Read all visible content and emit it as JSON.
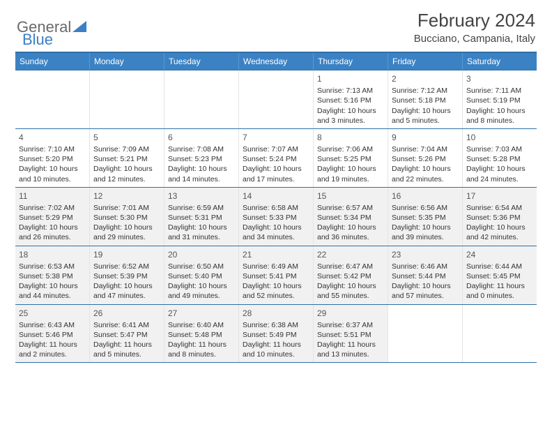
{
  "logo": {
    "text1": "General",
    "text2": "Blue"
  },
  "title": "February 2024",
  "location": "Bucciano, Campania, Italy",
  "colors": {
    "headerBar": "#3b82c4",
    "ruleLine": "#2f6fa7",
    "shaded": "#f1f1f1",
    "logoGray": "#6a6a6a",
    "logoBlue": "#3b7fc4"
  },
  "weekdays": [
    "Sunday",
    "Monday",
    "Tuesday",
    "Wednesday",
    "Thursday",
    "Friday",
    "Saturday"
  ],
  "weeks": [
    [
      {
        "empty": true
      },
      {
        "empty": true
      },
      {
        "empty": true
      },
      {
        "empty": true
      },
      {
        "num": "1",
        "sunrise": "7:13 AM",
        "sunset": "5:16 PM",
        "daylight": "10 hours and 3 minutes."
      },
      {
        "num": "2",
        "sunrise": "7:12 AM",
        "sunset": "5:18 PM",
        "daylight": "10 hours and 5 minutes."
      },
      {
        "num": "3",
        "sunrise": "7:11 AM",
        "sunset": "5:19 PM",
        "daylight": "10 hours and 8 minutes."
      }
    ],
    [
      {
        "num": "4",
        "sunrise": "7:10 AM",
        "sunset": "5:20 PM",
        "daylight": "10 hours and 10 minutes."
      },
      {
        "num": "5",
        "sunrise": "7:09 AM",
        "sunset": "5:21 PM",
        "daylight": "10 hours and 12 minutes."
      },
      {
        "num": "6",
        "sunrise": "7:08 AM",
        "sunset": "5:23 PM",
        "daylight": "10 hours and 14 minutes."
      },
      {
        "num": "7",
        "sunrise": "7:07 AM",
        "sunset": "5:24 PM",
        "daylight": "10 hours and 17 minutes."
      },
      {
        "num": "8",
        "sunrise": "7:06 AM",
        "sunset": "5:25 PM",
        "daylight": "10 hours and 19 minutes."
      },
      {
        "num": "9",
        "sunrise": "7:04 AM",
        "sunset": "5:26 PM",
        "daylight": "10 hours and 22 minutes."
      },
      {
        "num": "10",
        "sunrise": "7:03 AM",
        "sunset": "5:28 PM",
        "daylight": "10 hours and 24 minutes."
      }
    ],
    [
      {
        "num": "11",
        "shaded": true,
        "sunrise": "7:02 AM",
        "sunset": "5:29 PM",
        "daylight": "10 hours and 26 minutes."
      },
      {
        "num": "12",
        "shaded": true,
        "sunrise": "7:01 AM",
        "sunset": "5:30 PM",
        "daylight": "10 hours and 29 minutes."
      },
      {
        "num": "13",
        "shaded": true,
        "sunrise": "6:59 AM",
        "sunset": "5:31 PM",
        "daylight": "10 hours and 31 minutes."
      },
      {
        "num": "14",
        "shaded": true,
        "sunrise": "6:58 AM",
        "sunset": "5:33 PM",
        "daylight": "10 hours and 34 minutes."
      },
      {
        "num": "15",
        "shaded": true,
        "sunrise": "6:57 AM",
        "sunset": "5:34 PM",
        "daylight": "10 hours and 36 minutes."
      },
      {
        "num": "16",
        "shaded": true,
        "sunrise": "6:56 AM",
        "sunset": "5:35 PM",
        "daylight": "10 hours and 39 minutes."
      },
      {
        "num": "17",
        "shaded": true,
        "sunrise": "6:54 AM",
        "sunset": "5:36 PM",
        "daylight": "10 hours and 42 minutes."
      }
    ],
    [
      {
        "num": "18",
        "shaded": true,
        "sunrise": "6:53 AM",
        "sunset": "5:38 PM",
        "daylight": "10 hours and 44 minutes."
      },
      {
        "num": "19",
        "shaded": true,
        "sunrise": "6:52 AM",
        "sunset": "5:39 PM",
        "daylight": "10 hours and 47 minutes."
      },
      {
        "num": "20",
        "shaded": true,
        "sunrise": "6:50 AM",
        "sunset": "5:40 PM",
        "daylight": "10 hours and 49 minutes."
      },
      {
        "num": "21",
        "shaded": true,
        "sunrise": "6:49 AM",
        "sunset": "5:41 PM",
        "daylight": "10 hours and 52 minutes."
      },
      {
        "num": "22",
        "shaded": true,
        "sunrise": "6:47 AM",
        "sunset": "5:42 PM",
        "daylight": "10 hours and 55 minutes."
      },
      {
        "num": "23",
        "shaded": true,
        "sunrise": "6:46 AM",
        "sunset": "5:44 PM",
        "daylight": "10 hours and 57 minutes."
      },
      {
        "num": "24",
        "shaded": true,
        "sunrise": "6:44 AM",
        "sunset": "5:45 PM",
        "daylight": "11 hours and 0 minutes."
      }
    ],
    [
      {
        "num": "25",
        "shaded": true,
        "sunrise": "6:43 AM",
        "sunset": "5:46 PM",
        "daylight": "11 hours and 2 minutes."
      },
      {
        "num": "26",
        "shaded": true,
        "sunrise": "6:41 AM",
        "sunset": "5:47 PM",
        "daylight": "11 hours and 5 minutes."
      },
      {
        "num": "27",
        "shaded": true,
        "sunrise": "6:40 AM",
        "sunset": "5:48 PM",
        "daylight": "11 hours and 8 minutes."
      },
      {
        "num": "28",
        "shaded": true,
        "sunrise": "6:38 AM",
        "sunset": "5:49 PM",
        "daylight": "11 hours and 10 minutes."
      },
      {
        "num": "29",
        "shaded": true,
        "sunrise": "6:37 AM",
        "sunset": "5:51 PM",
        "daylight": "11 hours and 13 minutes."
      },
      {
        "empty": true
      },
      {
        "empty": true
      }
    ]
  ],
  "labels": {
    "sunrise": "Sunrise:",
    "sunset": "Sunset:",
    "daylight": "Daylight:"
  }
}
